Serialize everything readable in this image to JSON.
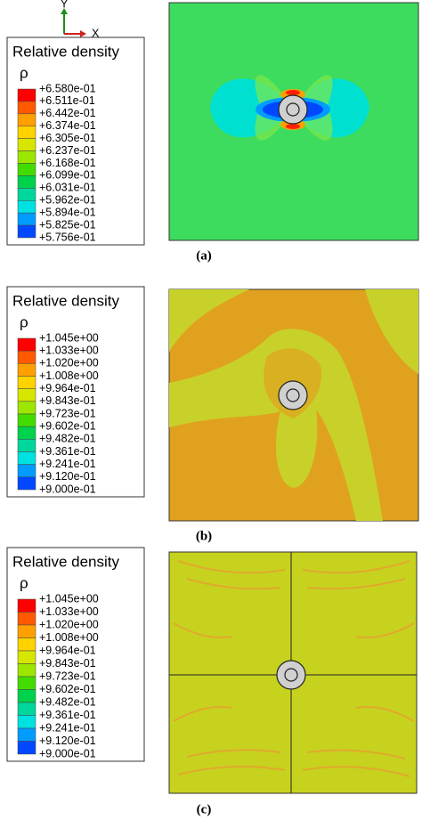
{
  "axis_triad": {
    "y_label": "Y",
    "x_label": "X"
  },
  "legend_colors": [
    "#ff0000",
    "#ff5a00",
    "#ffa000",
    "#ffd200",
    "#d6e600",
    "#9ce600",
    "#44dc00",
    "#00d24b",
    "#00d79b",
    "#00e2e2",
    "#009cff",
    "#0048ff"
  ],
  "panels": [
    {
      "caption": "(a)",
      "legend_title": "Relative density",
      "symbol": "ρ",
      "labels": [
        "+6.580e-01",
        "+6.511e-01",
        "+6.442e-01",
        "+6.374e-01",
        "+6.305e-01",
        "+6.237e-01",
        "+6.168e-01",
        "+6.099e-01",
        "+6.031e-01",
        "+5.962e-01",
        "+5.894e-01",
        "+5.825e-01",
        "+5.756e-01"
      ]
    },
    {
      "caption": "(b)",
      "legend_title": "Relative density",
      "symbol": "ρ",
      "labels": [
        "+1.045e+00",
        "+1.033e+00",
        "+1.020e+00",
        "+1.008e+00",
        "+9.964e-01",
        "+9.843e-01",
        "+9.723e-01",
        "+9.602e-01",
        "+9.482e-01",
        "+9.361e-01",
        "+9.241e-01",
        "+9.120e-01",
        "+9.000e-01"
      ]
    },
    {
      "caption": "(c)",
      "legend_title": "Relative density",
      "symbol": "ρ",
      "labels": [
        "+1.045e+00",
        "+1.033e+00",
        "+1.020e+00",
        "+1.008e+00",
        "+9.964e-01",
        "+9.843e-01",
        "+9.723e-01",
        "+9.602e-01",
        "+9.482e-01",
        "+9.361e-01",
        "+9.241e-01",
        "+9.120e-01",
        "+9.000e-01"
      ]
    }
  ]
}
